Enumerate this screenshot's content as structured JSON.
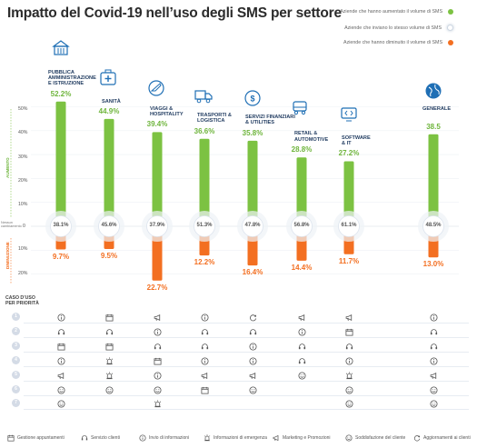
{
  "title": "Impatto del Covid-19 nell’uso degli SMS per settore",
  "legend": {
    "increased": "Aziende che hanno aumentato il volume di SMS",
    "same": "Aziende che inviano lo stesso volume di SMS",
    "decreased": "Aziende che hanno diminuito il volume di SMS"
  },
  "colors": {
    "increased": "#7cc242",
    "decreased": "#f36f21",
    "same": "#ffffff",
    "label": "#1f3a5f"
  },
  "axis": {
    "up_ticks": [
      "50%",
      "40%",
      "30%",
      "20%",
      "10%"
    ],
    "zero": "0",
    "down_ticks": [
      "10%",
      "20%"
    ],
    "up_label": "AUMENTO",
    "down_label": "DIMINUZIONE",
    "same_label": "Nessun cambiamento"
  },
  "chart_data": {
    "type": "bar",
    "categories": [
      "PUBBLICA AMMINISTRAZIONE E ISTRUZIONE",
      "SANITÀ",
      "VIAGGI & HOSPITALITY",
      "TRASPORTI & LOGISTICA",
      "SERVIZI FINANZIARI & UTILITIES",
      "RETAIL & AUTOMOTIVE",
      "SOFTWARE & IT",
      "GENERALE"
    ],
    "category_lines": [
      [
        "PUBBLICA",
        "AMMINISTRAZIONE",
        "E ISTRUZIONE"
      ],
      [
        "SANITÀ"
      ],
      [
        "VIAGGI &",
        "HOSPITALITY"
      ],
      [
        "TRASPORTI &",
        "LOGISTICA"
      ],
      [
        "SERVIZI FINANZIARI",
        "& UTILITIES"
      ],
      [
        "RETAIL &",
        "AUTOMOTIVE"
      ],
      [
        "SOFTWARE",
        "& IT"
      ],
      [
        "GENERALE"
      ]
    ],
    "series": [
      {
        "name": "Aziende che hanno aumentato il volume di SMS",
        "values": [
          52.2,
          44.9,
          39.4,
          36.6,
          35.8,
          28.8,
          27.2,
          38.5
        ]
      },
      {
        "name": "Aziende che inviano lo stesso volume di SMS",
        "values": [
          38.1,
          45.6,
          37.9,
          51.3,
          47.8,
          56.8,
          61.1,
          48.5
        ]
      },
      {
        "name": "Aziende che hanno diminuito il volume di SMS",
        "values": [
          9.7,
          9.5,
          22.7,
          12.2,
          16.4,
          14.4,
          11.7,
          13.0
        ]
      }
    ],
    "labels_up": [
      "52.2%",
      "44.9%",
      "39.4%",
      "36.6%",
      "35.8%",
      "28.8%",
      "27.2%",
      "38.5"
    ],
    "labels_same": [
      "38.1%",
      "45.6%",
      "37.9%",
      "51.3%",
      "47.8%",
      "56.8%",
      "61.1%",
      "48.5%"
    ],
    "labels_down": [
      "9.7%",
      "9.5%",
      "22.7%",
      "12.2%",
      "16.4%",
      "14.4%",
      "11.7%",
      "13.0%"
    ],
    "ylim_up": [
      0,
      50
    ],
    "ylim_down": [
      0,
      20
    ]
  },
  "sector_icons": [
    "building-icon",
    "medical-kit-icon",
    "airplane-icon",
    "truck-icon",
    "bank-icon",
    "car-icon",
    "code-icon",
    "globe-icon"
  ],
  "use_cases": {
    "title_lines": [
      "CASO D’USO",
      "PER PRIORITÀ"
    ],
    "ranks": [
      "1",
      "2",
      "3",
      "4",
      "5",
      "6",
      "7"
    ],
    "types": [
      {
        "key": "appt",
        "label": "Gestione appuntamenti",
        "icon": "calendar-icon"
      },
      {
        "key": "support",
        "label": "Servizio clienti",
        "icon": "headset-icon"
      },
      {
        "key": "info",
        "label": "Invio di informazioni",
        "icon": "info-icon"
      },
      {
        "key": "emergency",
        "label": "Informazioni di emergenza",
        "icon": "alarm-icon"
      },
      {
        "key": "marketing",
        "label": "Marketing e Promozioni",
        "icon": "megaphone-icon"
      },
      {
        "key": "satisfaction",
        "label": "Soddisfazione del cliente",
        "icon": "smiley-icon"
      },
      {
        "key": "updates",
        "label": "Aggiornamenti ai clienti",
        "icon": "refresh-icon"
      }
    ],
    "grid": [
      [
        "info",
        "appt",
        "marketing",
        "info",
        "updates",
        "marketing",
        "marketing",
        "info"
      ],
      [
        "support",
        "support",
        "info",
        "support",
        "support",
        "info",
        "appt",
        "support"
      ],
      [
        "appt",
        "appt",
        "support",
        "support",
        "info",
        "support",
        "support",
        "support"
      ],
      [
        "info",
        "emergency",
        "appt",
        "info",
        "info",
        "support",
        "info",
        "info"
      ],
      [
        "marketing",
        "emergency",
        "info",
        "marketing",
        "marketing",
        "satisfaction",
        "emergency",
        "marketing"
      ],
      [
        "satisfaction",
        "satisfaction",
        "satisfaction",
        "appt",
        "satisfaction",
        "",
        "satisfaction",
        "satisfaction"
      ],
      [
        "satisfaction",
        "",
        "emergency",
        "",
        "",
        "",
        "satisfaction",
        "satisfaction"
      ]
    ]
  }
}
